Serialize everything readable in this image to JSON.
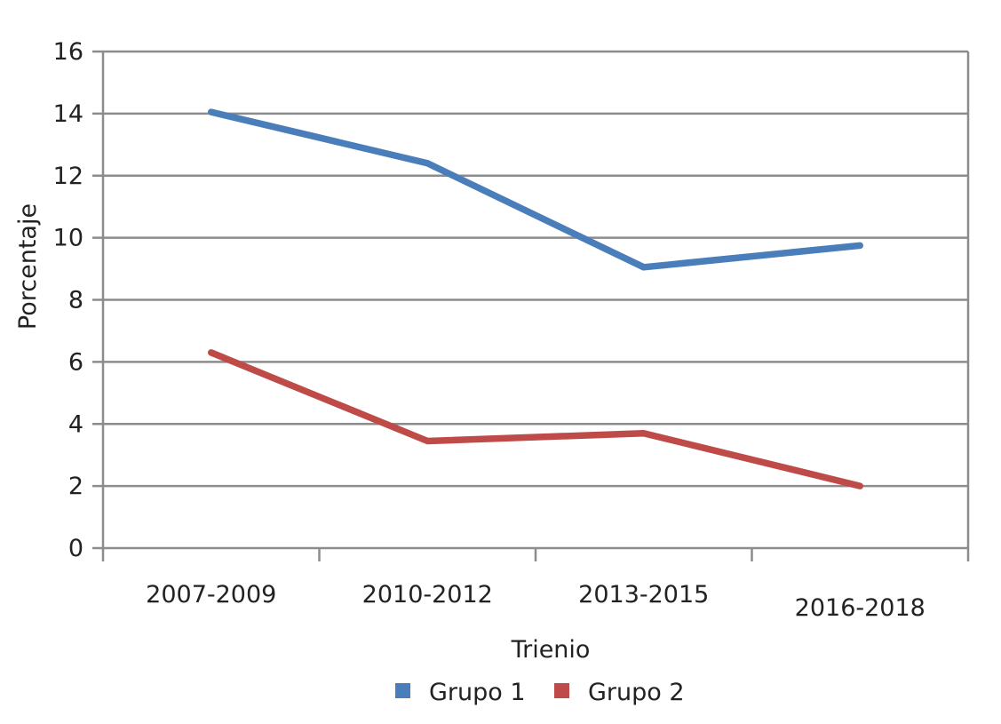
{
  "chart_data": {
    "type": "line",
    "title": "",
    "xlabel": "Trienio",
    "ylabel": "Porcentaje",
    "categories": [
      "2007-2009",
      "2010-2012",
      "2013-2015",
      "2016-2018"
    ],
    "ylim": [
      0,
      16
    ],
    "yticks": [
      "0",
      "2",
      "4",
      "6",
      "8",
      "10",
      "12",
      "14",
      "16"
    ],
    "grid": true,
    "legend_position": "bottom",
    "series": [
      {
        "name": "Grupo 1",
        "color": "#4a7ebb",
        "values": [
          14.05,
          12.4,
          9.05,
          9.75
        ]
      },
      {
        "name": "Grupo 2",
        "color": "#be4b48",
        "values": [
          6.3,
          3.45,
          3.7,
          2.0
        ]
      }
    ]
  }
}
